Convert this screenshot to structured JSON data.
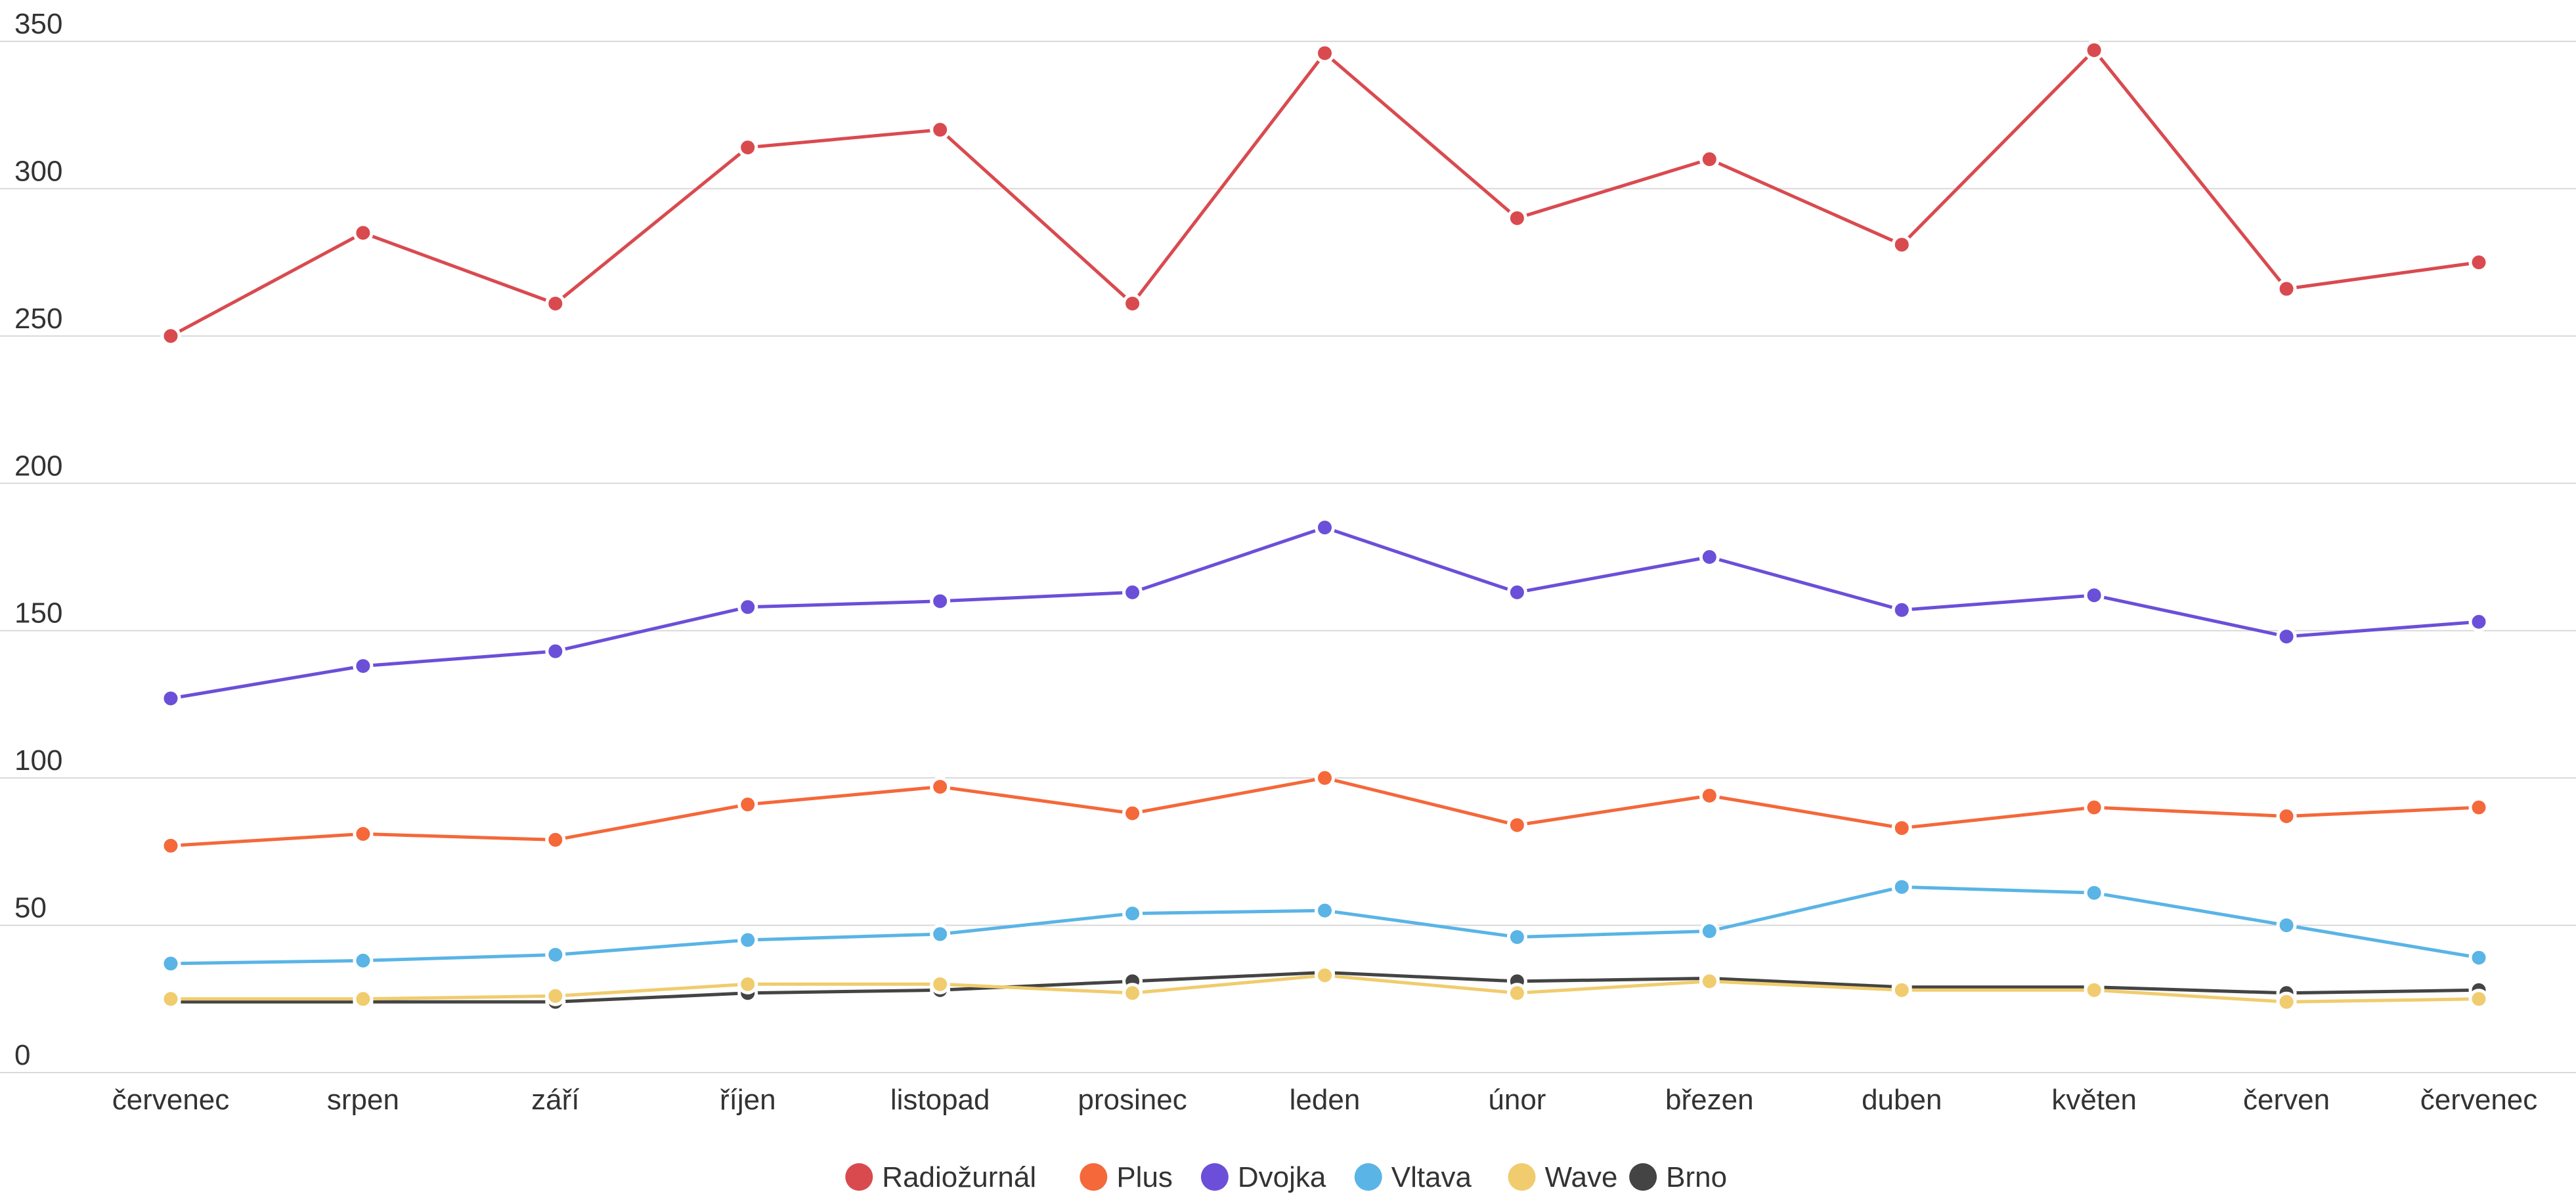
{
  "chart_data": {
    "type": "line",
    "categories": [
      "červenec",
      "srpen",
      "září",
      "říjen",
      "listopad",
      "prosinec",
      "leden",
      "únor",
      "březen",
      "duben",
      "květen",
      "červen",
      "červenec"
    ],
    "ylim": [
      0,
      350
    ],
    "yticks": [
      0,
      50,
      100,
      150,
      200,
      250,
      300,
      350
    ],
    "grid": true,
    "legend_position": "bottom",
    "series": [
      {
        "name": "Radiožurnál",
        "color": "#d94a4f",
        "values": [
          250,
          285,
          261,
          314,
          320,
          261,
          346,
          290,
          310,
          281,
          347,
          266,
          275
        ]
      },
      {
        "name": "Plus",
        "color": "#f4683a",
        "values": [
          77,
          81,
          79,
          91,
          97,
          88,
          100,
          84,
          94,
          83,
          90,
          87,
          90
        ]
      },
      {
        "name": "Dvojka",
        "color": "#6b4fd8",
        "values": [
          127,
          138,
          143,
          158,
          160,
          163,
          185,
          163,
          175,
          157,
          162,
          148,
          153
        ]
      },
      {
        "name": "Vltava",
        "color": "#5ab4e6",
        "values": [
          37,
          38,
          40,
          45,
          47,
          54,
          55,
          46,
          48,
          63,
          61,
          50,
          39
        ]
      },
      {
        "name": "Wave",
        "color": "#f0cc6e",
        "values": [
          25,
          25,
          26,
          30,
          30,
          27,
          33,
          27,
          31,
          28,
          28,
          24,
          25
        ]
      },
      {
        "name": "Brno",
        "color": "#444444",
        "values": [
          24,
          24,
          24,
          27,
          28,
          31,
          34,
          31,
          32,
          29,
          29,
          27,
          28
        ]
      }
    ]
  }
}
